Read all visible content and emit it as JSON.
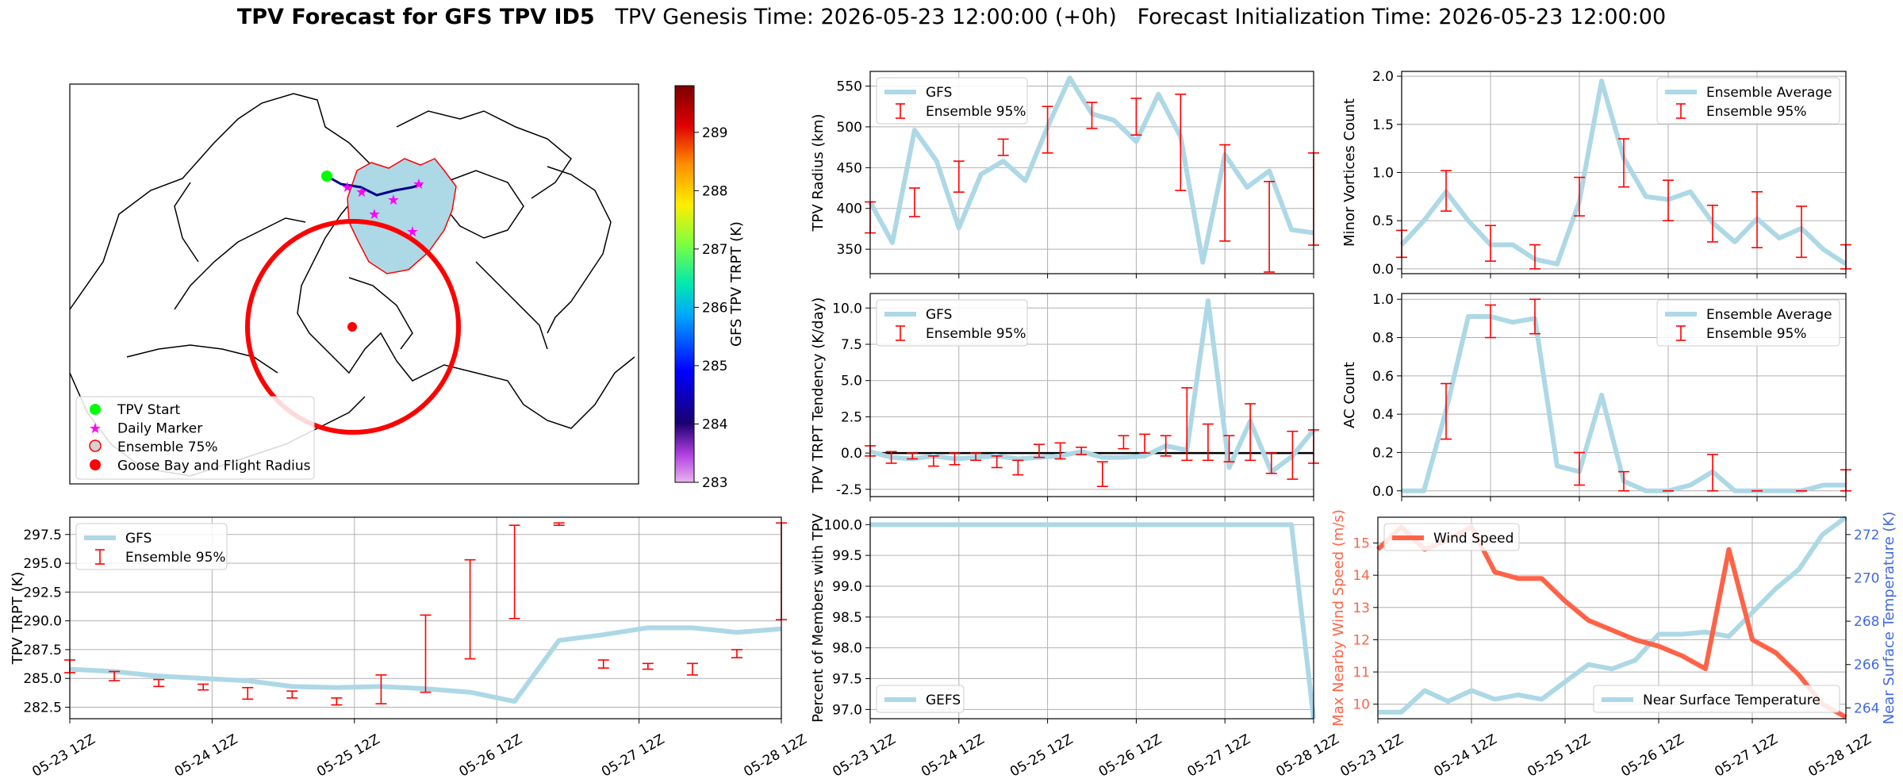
{
  "title": {
    "bold": "TPV Forecast for GFS TPV ID5",
    "genesis": "TPV Genesis Time: 2026-05-23 12:00:00 (+0h)",
    "init": "Forecast Initialization Time: 2026-05-23 12:00:00"
  },
  "colors": {
    "light_blue": "#add8e6",
    "red": "#ff0000",
    "tomato": "#ff6347",
    "royal_blue": "#4169e1",
    "green": "#00ff00",
    "magenta": "#ff00ff",
    "navy": "#00008b"
  },
  "time_ticks": [
    "05-23 12Z",
    "05-24 12Z",
    "05-25 12Z",
    "05-26 12Z",
    "05-27 12Z",
    "05-28 12Z"
  ],
  "chart_data": [
    {
      "id": "map",
      "type": "map",
      "legend": [
        "TPV Start",
        "Daily Marker",
        "Ensemble 75%",
        "Goose Bay and Flight Radius"
      ],
      "colorbar": {
        "label": "GFS TPV TRPT (K)",
        "ticks": [
          283,
          284,
          285,
          286,
          287,
          288,
          289
        ],
        "range": [
          283,
          289.8
        ]
      }
    },
    {
      "id": "radius",
      "type": "line",
      "ylabel": "TPV Radius (km)",
      "yticks": [
        350,
        400,
        450,
        500,
        550
      ],
      "ylim": [
        320,
        568
      ],
      "series": [
        {
          "name": "GFS",
          "values": [
            408,
            358,
            496,
            458,
            376,
            442,
            458,
            434,
            500,
            560,
            516,
            508,
            482,
            540,
            488,
            334,
            466,
            426,
            446,
            374,
            370
          ]
        }
      ],
      "errorbars": {
        "name": "Ensemble 95%",
        "x": [
          0,
          2,
          4,
          6,
          8,
          10,
          12,
          14,
          16,
          18,
          20
        ],
        "low": [
          370,
          390,
          420,
          465,
          468,
          498,
          490,
          422,
          360,
          322,
          355
        ],
        "high": [
          408,
          425,
          458,
          485,
          525,
          530,
          535,
          540,
          478,
          433,
          468
        ]
      }
    },
    {
      "id": "minor",
      "type": "line",
      "ylabel": "Minor Vortices Count",
      "yticks": [
        0.0,
        0.5,
        1.0,
        1.5,
        2.0
      ],
      "ylim": [
        -0.05,
        2.05
      ],
      "series": [
        {
          "name": "Ensemble Average",
          "values": [
            0.25,
            0.5,
            0.8,
            0.5,
            0.25,
            0.25,
            0.1,
            0.05,
            0.7,
            1.95,
            1.15,
            0.75,
            0.72,
            0.8,
            0.48,
            0.28,
            0.52,
            0.32,
            0.42,
            0.2,
            0.05
          ]
        }
      ],
      "errorbars": {
        "name": "Ensemble 95%",
        "x": [
          0,
          2,
          4,
          6,
          8,
          10,
          12,
          14,
          16,
          18,
          20
        ],
        "low": [
          0.12,
          0.6,
          0.08,
          0.0,
          0.55,
          0.85,
          0.5,
          0.28,
          0.22,
          0.12,
          0.0
        ],
        "high": [
          0.4,
          1.02,
          0.45,
          0.25,
          0.95,
          1.35,
          0.92,
          0.66,
          0.8,
          0.65,
          0.25
        ]
      }
    },
    {
      "id": "tendency",
      "type": "line",
      "ylabel": "TPV TRPT Tendency (K/day)",
      "yticks": [
        -2.5,
        0.0,
        2.5,
        5.0,
        7.5,
        10.0
      ],
      "ylim": [
        -3,
        11
      ],
      "series": [
        {
          "name": "GFS",
          "values": [
            0.1,
            -0.3,
            -0.4,
            -0.2,
            -0.4,
            -0.3,
            -0.2,
            -0.4,
            -0.3,
            -0.2,
            0.1,
            -0.3,
            -0.3,
            -0.2,
            0.5,
            0.2,
            10.5,
            -1.0,
            2.2,
            -1.3,
            -0.2,
            1.6
          ]
        }
      ],
      "errorbars": {
        "name": "Ensemble 95%",
        "x": [
          0,
          1,
          2,
          3,
          4,
          5,
          6,
          7,
          8,
          9,
          10,
          11,
          12,
          13,
          14,
          15,
          16,
          17,
          18,
          19,
          20,
          21
        ],
        "low": [
          -0.2,
          -0.7,
          -0.4,
          -0.9,
          -0.8,
          -0.5,
          -1.0,
          -1.5,
          -0.3,
          -0.4,
          -0.1,
          -2.3,
          0.3,
          0.0,
          -0.2,
          -0.5,
          -0.5,
          -0.6,
          -0.5,
          -1.4,
          -1.8,
          -0.7
        ],
        "high": [
          0.5,
          0.1,
          0.0,
          -0.2,
          0.0,
          0.0,
          -0.2,
          -0.5,
          0.6,
          0.7,
          0.4,
          -0.6,
          1.2,
          1.3,
          1.2,
          4.5,
          2.0,
          1.2,
          3.4,
          0.0,
          1.5,
          1.6
        ]
      },
      "zero_line": true
    },
    {
      "id": "ac",
      "type": "line",
      "ylabel": "AC Count",
      "yticks": [
        0.0,
        0.2,
        0.4,
        0.6,
        0.8,
        1.0
      ],
      "ylim": [
        -0.03,
        1.03
      ],
      "series": [
        {
          "name": "Ensemble Average",
          "values": [
            0.0,
            0.0,
            0.42,
            0.91,
            0.91,
            0.88,
            0.9,
            0.13,
            0.1,
            0.5,
            0.05,
            0.0,
            0.0,
            0.03,
            0.1,
            0.0,
            0.0,
            0.0,
            0.0,
            0.03,
            0.03
          ]
        }
      ],
      "errorbars": {
        "name": "Ensemble 95%",
        "x": [
          2,
          4,
          6,
          8,
          10,
          12,
          14,
          16,
          18,
          20
        ],
        "low": [
          0.27,
          0.8,
          0.82,
          0.03,
          0.0,
          0.0,
          0.0,
          0.0,
          0.0,
          0.0
        ],
        "high": [
          0.56,
          0.97,
          1.0,
          0.2,
          0.1,
          0.0,
          0.19,
          0.0,
          0.0,
          0.11
        ]
      }
    },
    {
      "id": "trpt",
      "type": "line",
      "ylabel": "TPV TRPT (K)",
      "yticks": [
        282.5,
        285.0,
        287.5,
        290.0,
        292.5,
        295.0,
        297.5
      ],
      "ylim": [
        281.5,
        299
      ],
      "series": [
        {
          "name": "GFS",
          "values": [
            285.8,
            285.6,
            285.2,
            285.0,
            284.8,
            284.3,
            284.2,
            284.3,
            284.1,
            283.8,
            283.0,
            288.3,
            288.8,
            289.4,
            289.4,
            289.0,
            289.3
          ]
        }
      ],
      "errorbars": {
        "name": "Ensemble 95%",
        "x": [
          0,
          1,
          2,
          3,
          4,
          5,
          6,
          7,
          8,
          9,
          10,
          11,
          12,
          13,
          14,
          15,
          16
        ],
        "low": [
          285.5,
          284.8,
          284.3,
          284.0,
          283.2,
          283.3,
          282.7,
          282.8,
          283.8,
          286.7,
          290.2,
          298.3,
          285.9,
          285.8,
          285.3,
          286.8,
          290.1
        ],
        "high": [
          286.6,
          285.6,
          284.9,
          284.5,
          284.2,
          283.9,
          283.3,
          285.3,
          290.5,
          295.3,
          298.3,
          298.5,
          286.6,
          286.3,
          286.3,
          287.5,
          298.5
        ]
      }
    },
    {
      "id": "members",
      "type": "line",
      "ylabel": "Percent of Members with TPV",
      "yticks": [
        97.0,
        97.5,
        98.0,
        98.5,
        99.0,
        99.5,
        100.0
      ],
      "ylim": [
        96.85,
        100.12
      ],
      "series": [
        {
          "name": "GEFS",
          "values": [
            100,
            100,
            100,
            100,
            100,
            100,
            100,
            100,
            100,
            100,
            100,
            100,
            100,
            100,
            100,
            100,
            100,
            100,
            100,
            100,
            96.85
          ]
        }
      ]
    },
    {
      "id": "wind",
      "type": "line",
      "ylabel": "Max Nearby Wind Speed (m/s)",
      "ylabel2": "Near Surface Temperature (K)",
      "yticks": [
        10,
        11,
        12,
        13,
        14,
        15
      ],
      "ylim": [
        9.55,
        15.8
      ],
      "yticks2": [
        264,
        266,
        268,
        270,
        272
      ],
      "ylim2": [
        263.5,
        272.8
      ],
      "series": [
        {
          "name": "Wind Speed",
          "axis": "left",
          "values": [
            14.8,
            15.5,
            14.8,
            15.1,
            15.5,
            14.1,
            13.9,
            13.9,
            13.2,
            12.6,
            12.3,
            12.0,
            11.8,
            11.5,
            11.1,
            14.8,
            12.0,
            11.6,
            10.9,
            10.0,
            9.6
          ]
        },
        {
          "name": "Near Surface Temperature",
          "axis": "right",
          "values": [
            263.8,
            263.8,
            264.8,
            264.3,
            264.8,
            264.4,
            264.6,
            264.4,
            265.2,
            266.0,
            265.8,
            266.2,
            267.4,
            267.4,
            267.5,
            267.3,
            268.4,
            269.5,
            270.4,
            272.0,
            272.8
          ]
        }
      ]
    }
  ]
}
